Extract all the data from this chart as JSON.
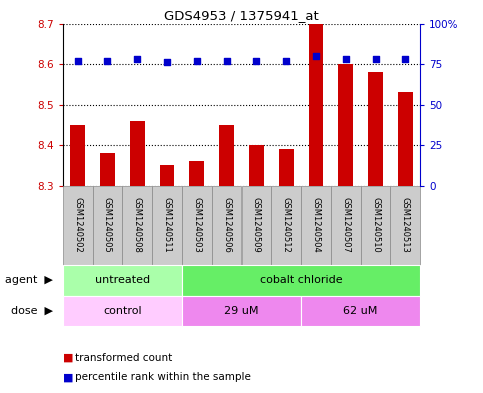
{
  "title": "GDS4953 / 1375941_at",
  "samples": [
    "GSM1240502",
    "GSM1240505",
    "GSM1240508",
    "GSM1240511",
    "GSM1240503",
    "GSM1240506",
    "GSM1240509",
    "GSM1240512",
    "GSM1240504",
    "GSM1240507",
    "GSM1240510",
    "GSM1240513"
  ],
  "transformed_counts": [
    8.45,
    8.38,
    8.46,
    8.35,
    8.36,
    8.45,
    8.4,
    8.39,
    8.7,
    8.6,
    8.58,
    8.53
  ],
  "percentile_ranks": [
    77,
    77,
    78,
    76,
    77,
    77,
    77,
    77,
    80,
    78,
    78,
    78
  ],
  "ylim_left": [
    8.3,
    8.7
  ],
  "ylim_right": [
    0,
    100
  ],
  "yticks_left": [
    8.3,
    8.4,
    8.5,
    8.6,
    8.7
  ],
  "yticks_right": [
    0,
    25,
    50,
    75,
    100
  ],
  "yticklabels_right": [
    "0",
    "25",
    "50",
    "75",
    "100%"
  ],
  "bar_color": "#cc0000",
  "dot_color": "#0000cc",
  "agent_groups": [
    {
      "label": "untreated",
      "start": 0,
      "end": 4,
      "color": "#aaffaa"
    },
    {
      "label": "cobalt chloride",
      "start": 4,
      "end": 12,
      "color": "#66ee66"
    }
  ],
  "dose_groups": [
    {
      "label": "control",
      "start": 0,
      "end": 4,
      "color": "#ffccff"
    },
    {
      "label": "29 uM",
      "start": 4,
      "end": 8,
      "color": "#ee88ee"
    },
    {
      "label": "62 uM",
      "start": 8,
      "end": 12,
      "color": "#ee88ee"
    }
  ],
  "legend_items": [
    {
      "label": "transformed count",
      "color": "#cc0000"
    },
    {
      "label": "percentile rank within the sample",
      "color": "#0000cc"
    }
  ],
  "agent_label": "agent",
  "dose_label": "dose",
  "bar_bottom": 8.3,
  "tick_label_color_left": "#cc0000",
  "tick_label_color_right": "#0000cc",
  "sample_box_color": "#cccccc",
  "sample_box_edge": "#888888"
}
